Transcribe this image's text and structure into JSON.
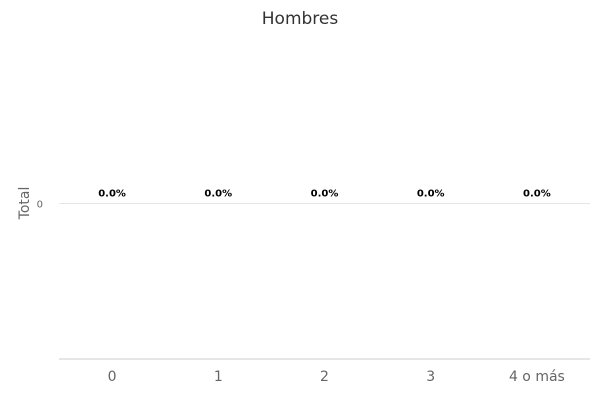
{
  "chart_data": {
    "type": "bar",
    "title": "Hombres",
    "xlabel": "",
    "ylabel": "Total",
    "categories": [
      "0",
      "1",
      "2",
      "3",
      "4 o más"
    ],
    "series": [
      {
        "values": [
          0,
          0,
          0,
          0,
          0
        ],
        "data_labels": [
          "0.0%",
          "0.0%",
          "0.0%",
          "0.0%",
          "0.0%"
        ]
      }
    ],
    "y_ticks": [
      "0"
    ],
    "ylim": [
      -1,
      1
    ],
    "grid": true,
    "legend": "none",
    "colors": {
      "title": "#333333",
      "axis_label": "#666666",
      "tick_label": "#666666",
      "data_label": "#000000",
      "gridline": "#e6e6e6",
      "axis_line": "#cccccc",
      "bar": "#7cb5ec"
    }
  }
}
